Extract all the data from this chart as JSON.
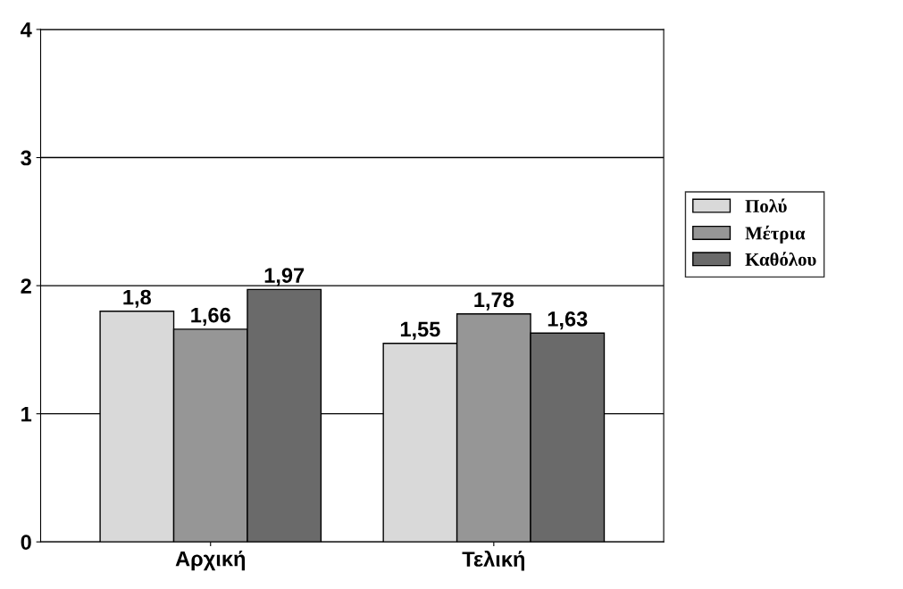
{
  "chart_data": {
    "type": "bar",
    "categories": [
      "Αρχική",
      "Τελική"
    ],
    "series": [
      {
        "name": "Πολύ",
        "color": "#d9d9d9",
        "values": [
          1.8,
          1.55
        ],
        "value_labels": [
          "1,8",
          "1,55"
        ]
      },
      {
        "name": "Μέτρια",
        "color": "#969696",
        "values": [
          1.66,
          1.78
        ],
        "value_labels": [
          "1,66",
          "1,78"
        ]
      },
      {
        "name": "Καθόλου",
        "color": "#6a6a6a",
        "values": [
          1.97,
          1.63
        ],
        "value_labels": [
          "1,97",
          "1,63"
        ]
      }
    ],
    "ylim": [
      0,
      4
    ],
    "yticks": [
      0,
      1,
      2,
      3,
      4
    ],
    "grid": "y",
    "legend": "right"
  }
}
